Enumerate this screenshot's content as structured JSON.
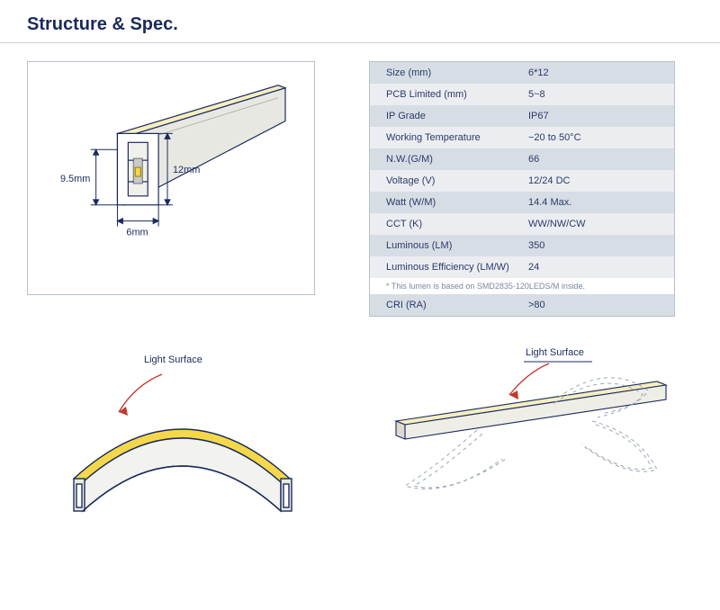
{
  "title": "Structure & Spec.",
  "diagram": {
    "strip_fill": "#f6eec0",
    "strip_outline": "#1a2a5e",
    "chip_body": "#c9c9c9",
    "chip_led": "#f4d84a",
    "dim_w": "6mm",
    "dim_h": "12mm",
    "dim_inner": "9.5mm",
    "arrow_color": "#1a2a5e",
    "label_color": "#1a2a5e",
    "label_fontsize": 11
  },
  "spec": {
    "row_even_bg": "#ecedf0",
    "row_odd_bg": "#d7dde4",
    "rows": [
      {
        "label": "Size (mm)",
        "value": "6*12"
      },
      {
        "label": "PCB Limited (mm)",
        "value": "5~8"
      },
      {
        "label": "IP Grade",
        "value": "IP67"
      },
      {
        "label": "Working Temperature",
        "value": "−20 to 50°C"
      },
      {
        "label": "N.W.(G/M)",
        "value": "66"
      },
      {
        "label": "Voltage (V)",
        "value": "12/24 DC"
      },
      {
        "label": "Watt (W/M)",
        "value": "14.4 Max."
      },
      {
        "label": "CCT (K)",
        "value": "WW/NW/CW"
      },
      {
        "label": "Luminous (LM)",
        "value": "350"
      },
      {
        "label": "Luminous Efficiency (LM/W)",
        "value": "24"
      }
    ],
    "footnote": "* This lumen is based on SMD2835-120LEDS/M inside.",
    "last_row": {
      "label": "CRI (RA)",
      "value": ">80"
    }
  },
  "curve_diagram": {
    "light_surface_label": "Light Surface",
    "arc_fill": "#f4d84a",
    "arc_stroke": "#1a2a5e",
    "arrow_color": "#c0392b",
    "label_color": "#1a2a5e",
    "label_fontsize": 11
  },
  "serp_diagram": {
    "light_surface_label": "Light Surface",
    "strip_fill": "#f6eec0",
    "strip_stroke": "#1a2a5e",
    "dash_color": "#9aa6b8",
    "arrow_color": "#c0392b",
    "label_color": "#1a2a5e",
    "label_fontsize": 11
  }
}
